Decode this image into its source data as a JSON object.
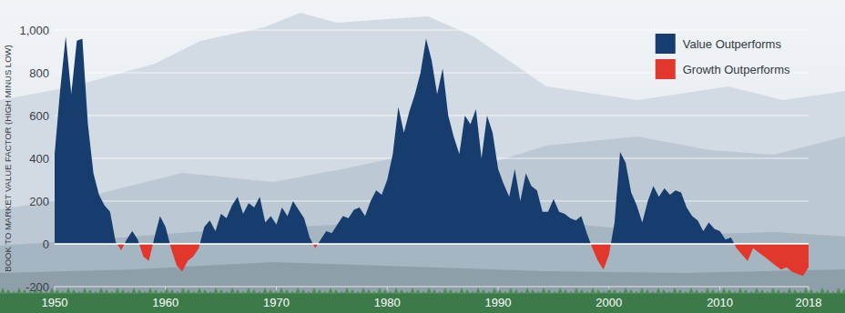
{
  "chart_data": {
    "type": "area",
    "y_label": "BOOK TO MARKET VALUE FACTOR (HIGH MINUS LOW)",
    "legend_labels": [
      "Value Outperforms",
      "Growth Outperforms"
    ],
    "colors": [
      "#173d6e",
      "#e1372c"
    ],
    "legend": "top-right",
    "grid": true,
    "xlim": [
      1950,
      2018
    ],
    "xticks": [
      1950,
      1960,
      1970,
      1980,
      1990,
      2000,
      2010,
      2018
    ],
    "ylim": [
      -200,
      1000
    ],
    "yticks": [
      -200,
      0,
      200,
      400,
      600,
      800,
      {
        "value": 1000,
        "label": "1,000"
      }
    ],
    "x": [
      1950,
      1950.5,
      1951,
      1951.5,
      1952,
      1952.5,
      1953,
      1953.5,
      1954,
      1954.5,
      1955,
      1955.5,
      1956,
      1956.5,
      1957,
      1957.5,
      1958,
      1958.5,
      1959,
      1959.5,
      1960,
      1960.5,
      1961,
      1961.5,
      1962,
      1962.5,
      1963,
      1963.5,
      1964,
      1964.5,
      1965,
      1965.5,
      1966,
      1966.5,
      1967,
      1967.5,
      1968,
      1968.5,
      1969,
      1969.5,
      1970,
      1970.5,
      1971,
      1971.5,
      1972,
      1972.5,
      1973,
      1973.5,
      1974,
      1974.5,
      1975,
      1975.5,
      1976,
      1976.5,
      1977,
      1977.5,
      1978,
      1978.5,
      1979,
      1979.5,
      1980,
      1980.5,
      1981,
      1981.5,
      1982,
      1982.5,
      1983,
      1983.5,
      1984,
      1984.5,
      1985,
      1985.5,
      1986,
      1986.5,
      1987,
      1987.5,
      1988,
      1988.5,
      1989,
      1989.5,
      1990,
      1990.5,
      1991,
      1991.5,
      1992,
      1992.5,
      1993,
      1993.5,
      1994,
      1994.5,
      1995,
      1995.5,
      1996,
      1996.5,
      1997,
      1997.5,
      1998,
      1998.5,
      1999,
      1999.5,
      2000,
      2000.5,
      2001,
      2001.5,
      2002,
      2002.5,
      2003,
      2003.5,
      2004,
      2004.5,
      2005,
      2005.5,
      2006,
      2006.5,
      2007,
      2007.5,
      2008,
      2008.5,
      2009,
      2009.5,
      2010,
      2010.5,
      2011,
      2011.5,
      2012,
      2012.5,
      2013,
      2013.5,
      2014,
      2014.5,
      2015,
      2015.5,
      2016,
      2016.5,
      2017,
      2017.5,
      2018
    ],
    "series": [
      {
        "values": [
          420,
          720,
          970,
          700,
          950,
          960,
          560,
          330,
          230,
          180,
          150,
          10,
          -30,
          20,
          60,
          20,
          -60,
          -80,
          30,
          130,
          80,
          -20,
          -100,
          -130,
          -80,
          -60,
          -20,
          80,
          110,
          60,
          140,
          120,
          180,
          220,
          140,
          190,
          170,
          220,
          100,
          130,
          90,
          170,
          130,
          200,
          160,
          120,
          30,
          -20,
          20,
          60,
          50,
          90,
          130,
          120,
          160,
          170,
          130,
          200,
          250,
          230,
          300,
          420,
          640,
          520,
          620,
          700,
          800,
          960,
          860,
          700,
          820,
          600,
          500,
          420,
          600,
          560,
          630,
          400,
          600,
          520,
          350,
          280,
          220,
          350,
          200,
          330,
          270,
          250,
          150,
          150,
          210,
          150,
          140,
          120,
          110,
          130,
          50,
          -20,
          -80,
          -120,
          -50,
          100,
          430,
          380,
          240,
          180,
          100,
          200,
          270,
          220,
          260,
          230,
          250,
          240,
          170,
          130,
          110,
          60,
          100,
          70,
          60,
          20,
          30,
          -20,
          -50,
          -80,
          -20,
          -40,
          -60,
          -80,
          -100,
          -120,
          -110,
          -130,
          -140,
          -150,
          -110
        ]
      }
    ]
  }
}
